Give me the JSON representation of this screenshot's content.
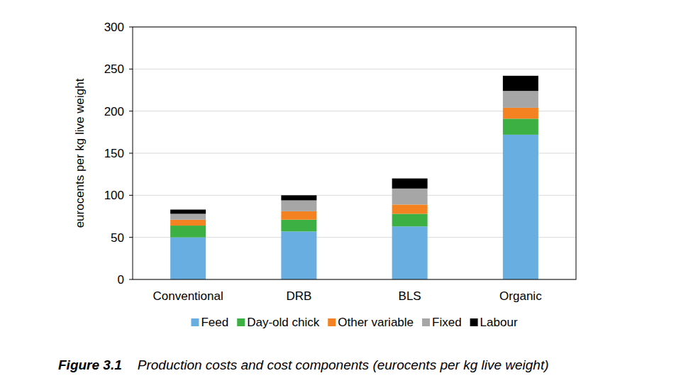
{
  "chart_data": {
    "type": "bar",
    "stacked": true,
    "grid": true,
    "figure_label": "Figure 3.1",
    "title": "Production costs and cost components (eurocents per kg live weight)",
    "y_label": "eurocents per kg live weight",
    "categories": [
      "Conventional",
      "DRB",
      "BLS",
      "Organic"
    ],
    "series": [
      {
        "name": "Feed",
        "color": "#68aee0",
        "values": [
          50,
          57,
          63,
          172
        ]
      },
      {
        "name": "Day-old chick",
        "color": "#3cb043",
        "values": [
          14,
          14,
          15,
          19
        ]
      },
      {
        "name": "Other variable",
        "color": "#f58220",
        "values": [
          7,
          10,
          11,
          13
        ]
      },
      {
        "name": "Fixed",
        "color": "#a6a6a6",
        "values": [
          7,
          13,
          19,
          20
        ]
      },
      {
        "name": "Labour",
        "color": "#000000",
        "values": [
          5,
          6,
          12,
          18
        ]
      }
    ],
    "ylim": [
      0,
      300
    ],
    "yticks": [
      0,
      50,
      100,
      150,
      200,
      250,
      300
    ],
    "legend": "bottom"
  }
}
